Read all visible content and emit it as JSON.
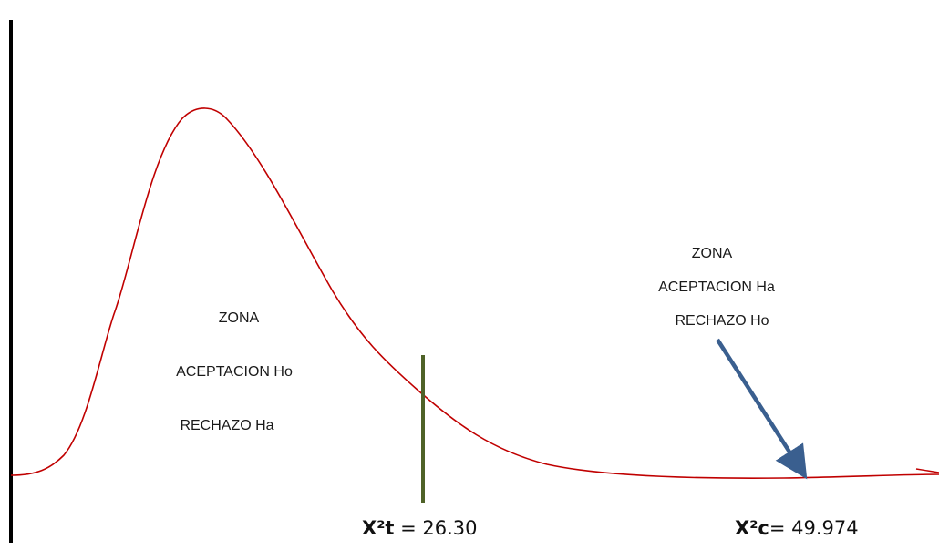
{
  "colors": {
    "curve": "#c00000",
    "axis": "#000000",
    "critical_line": "#4f6228",
    "arrow": "#3a5f8f"
  },
  "accept_zone": {
    "line1": "ZONA",
    "line2": "ACEPTACION Ho",
    "line3": "RECHAZO Ha"
  },
  "reject_zone": {
    "line1": "ZONA",
    "line2": "ACEPTACION Ha",
    "line3": "RECHAZO Ho"
  },
  "critical_value": {
    "symbol": "X²t",
    "value": "= 26.30"
  },
  "calculated_value": {
    "symbol": "X²c",
    "value": "= 49.974"
  }
}
